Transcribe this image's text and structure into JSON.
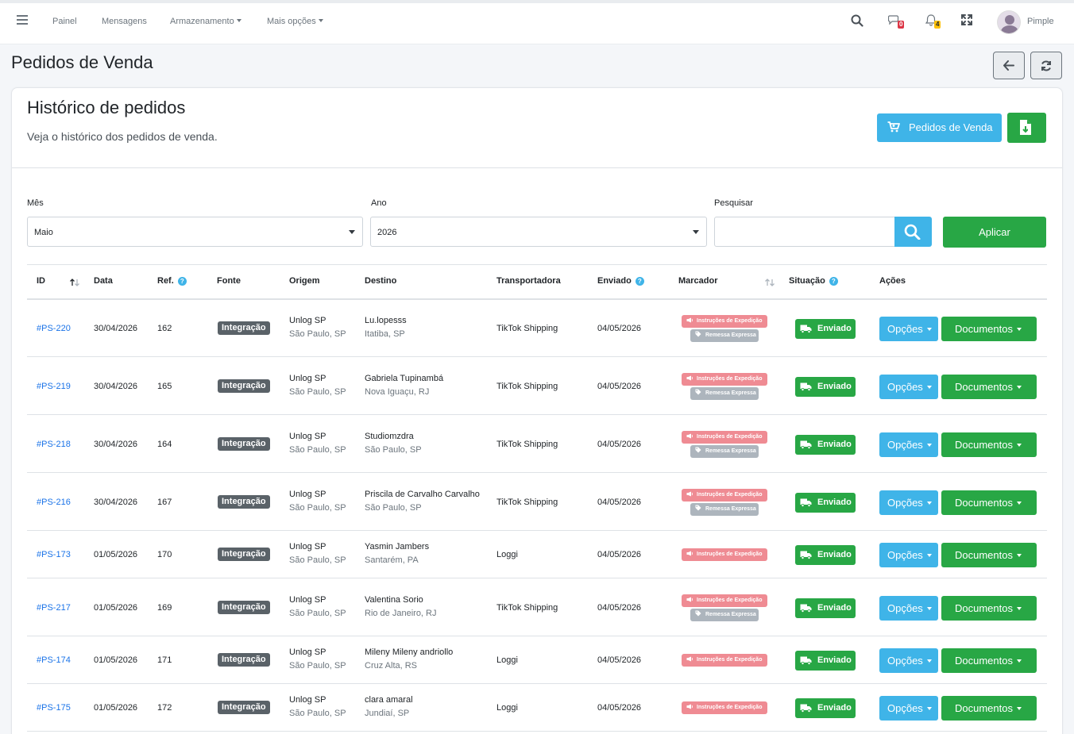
{
  "nav": {
    "items": [
      "Painel",
      "Mensagens",
      "Armazenamento",
      "Mais opções"
    ],
    "messages_count": "0",
    "notifications_count": "4",
    "user_name": "Pimple"
  },
  "page": {
    "title": "Pedidos de Venda"
  },
  "card": {
    "title": "Histórico de pedidos",
    "subtitle": "Veja o histórico dos pedidos de venda.",
    "orders_button": "Pedidos de Venda"
  },
  "filters": {
    "month_label": "Mês",
    "month_value": "Maio",
    "year_label": "Ano",
    "year_value": "2026",
    "search_label": "Pesquisar",
    "search_value": "",
    "apply_label": "Aplicar"
  },
  "table": {
    "headers": [
      "ID",
      "Data",
      "Ref.",
      "Fonte",
      "Origem",
      "Destino",
      "Transportadora",
      "Enviado",
      "Marcador",
      "Situação",
      "Ações"
    ],
    "tag_expedicao": "Instruções de Expedição",
    "tag_remessa": "Remessa Expressa",
    "status_label": "Enviado",
    "options_label": "Opções",
    "documents_label": "Documentos",
    "rows": [
      {
        "id": "#PS-220",
        "date": "30/04/2026",
        "ref": "162",
        "source": "Integração",
        "origin": "Unlog SP",
        "origin_city": "São Paulo, SP",
        "dest": "Lu.lopesss",
        "dest_city": "Itatiba, SP",
        "carrier": "TikTok Shipping",
        "sent": "04/05/2026",
        "express": true
      },
      {
        "id": "#PS-219",
        "date": "30/04/2026",
        "ref": "165",
        "source": "Integração",
        "origin": "Unlog SP",
        "origin_city": "São Paulo, SP",
        "dest": "Gabriela Tupinambá",
        "dest_city": "Nova Iguaçu, RJ",
        "carrier": "TikTok Shipping",
        "sent": "04/05/2026",
        "express": true
      },
      {
        "id": "#PS-218",
        "date": "30/04/2026",
        "ref": "164",
        "source": "Integração",
        "origin": "Unlog SP",
        "origin_city": "São Paulo, SP",
        "dest": "Studiomzdra",
        "dest_city": "São Paulo, SP",
        "carrier": "TikTok Shipping",
        "sent": "04/05/2026",
        "express": true
      },
      {
        "id": "#PS-216",
        "date": "30/04/2026",
        "ref": "167",
        "source": "Integração",
        "origin": "Unlog SP",
        "origin_city": "São Paulo, SP",
        "dest": "Priscila de Carvalho Carvalho",
        "dest_city": "São Paulo, SP",
        "carrier": "TikTok Shipping",
        "sent": "04/05/2026",
        "express": true
      },
      {
        "id": "#PS-173",
        "date": "01/05/2026",
        "ref": "170",
        "source": "Integração",
        "origin": "Unlog SP",
        "origin_city": "São Paulo, SP",
        "dest": "Yasmin Jambers",
        "dest_city": "Santarém, PA",
        "carrier": "Loggi",
        "sent": "04/05/2026",
        "express": false
      },
      {
        "id": "#PS-217",
        "date": "01/05/2026",
        "ref": "169",
        "source": "Integração",
        "origin": "Unlog SP",
        "origin_city": "São Paulo, SP",
        "dest": "Valentina Sorio",
        "dest_city": "Rio de Janeiro, RJ",
        "carrier": "TikTok Shipping",
        "sent": "04/05/2026",
        "express": true
      },
      {
        "id": "#PS-174",
        "date": "01/05/2026",
        "ref": "171",
        "source": "Integração",
        "origin": "Unlog SP",
        "origin_city": "São Paulo, SP",
        "dest": "Mileny Mileny andriollo",
        "dest_city": "Cruz Alta, RS",
        "carrier": "Loggi",
        "sent": "04/05/2026",
        "express": false
      },
      {
        "id": "#PS-175",
        "date": "01/05/2026",
        "ref": "172",
        "source": "Integração",
        "origin": "Unlog SP",
        "origin_city": "São Paulo, SP",
        "dest": "clara amaral",
        "dest_city": "Jundiaí, SP",
        "carrier": "Loggi",
        "sent": "04/05/2026",
        "express": false
      }
    ]
  },
  "colors": {
    "primary_info": "#3fb4e8",
    "success": "#28a745",
    "danger_tag": "#ef8b93",
    "link": "#1a73e8"
  },
  "icons": [
    "menu-icon",
    "search-icon",
    "chat-icon",
    "bell-icon",
    "expand-icon",
    "arrow-left-icon",
    "refresh-icon",
    "cart-icon",
    "file-export-icon",
    "truck-icon",
    "megaphone-icon",
    "tag-icon",
    "sort-icon",
    "question-icon"
  ]
}
